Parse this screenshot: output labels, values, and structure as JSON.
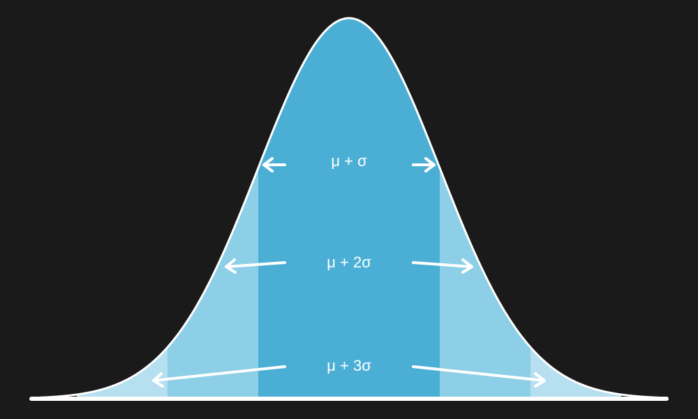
{
  "colors": {
    "background": "#1a1a1a",
    "band_1sigma": "#4bafd5",
    "band_2sigma": "#8ccfe6",
    "band_3sigma": "#b6dff0",
    "curve": "#ffffff",
    "arrows": "#ffffff"
  },
  "labels": {
    "sigma1": "μ + σ",
    "sigma2": "μ + 2σ",
    "sigma3": "μ + 3σ"
  }
}
